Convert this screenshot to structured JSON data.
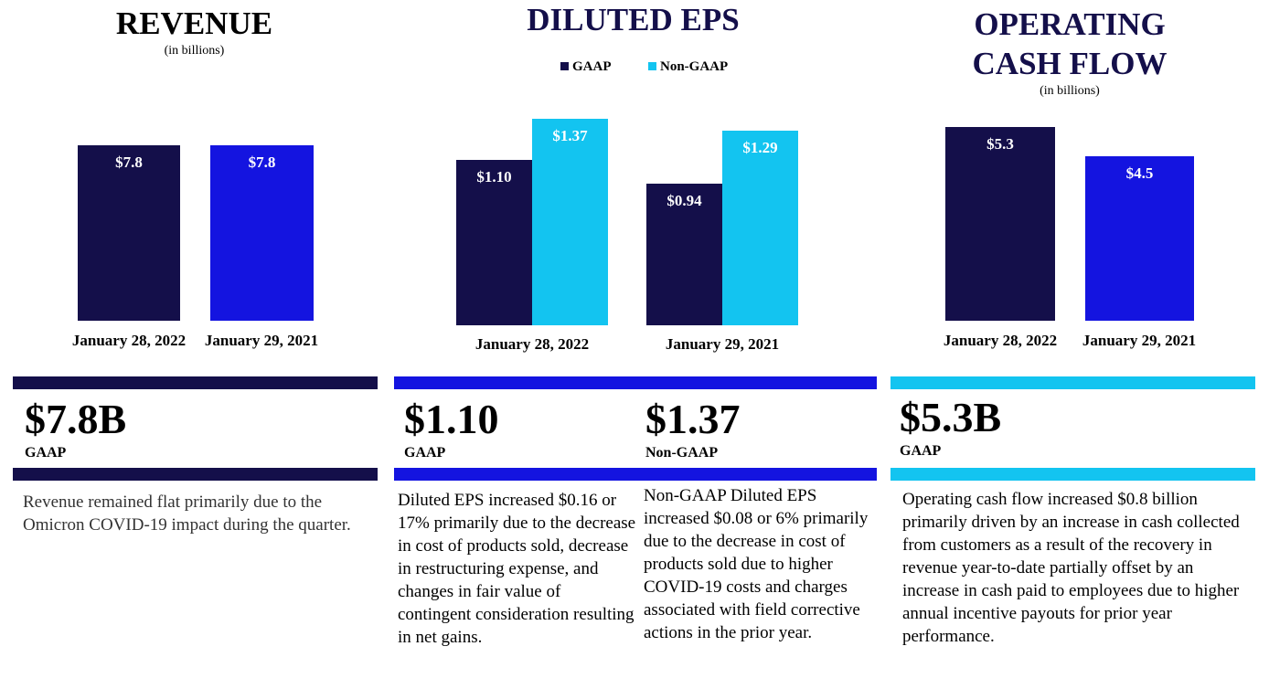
{
  "colors": {
    "navy": "#140f4a",
    "blue": "#1414e0",
    "cyan": "#13c4f0"
  },
  "chart_data": [
    {
      "type": "bar",
      "title": "REVENUE",
      "subtitle": "(in billions)",
      "categories": [
        "January 28, 2022",
        "January 29, 2021"
      ],
      "values": [
        7.8,
        7.8
      ],
      "value_labels": [
        "$7.8",
        "$7.8"
      ],
      "ylim": [
        0,
        8.6
      ]
    },
    {
      "type": "bar",
      "title": "DILUTED EPS",
      "categories": [
        "January 28, 2022",
        "January 29, 2021"
      ],
      "series": [
        {
          "name": "GAAP",
          "values": [
            1.1,
            0.94
          ],
          "value_labels": [
            "$1.10",
            "$0.94"
          ]
        },
        {
          "name": "Non-GAAP",
          "values": [
            1.37,
            1.29
          ],
          "value_labels": [
            "$1.37",
            "$1.29"
          ]
        }
      ],
      "ylim": [
        0,
        1.5
      ]
    },
    {
      "type": "bar",
      "title": "OPERATING CASH FLOW",
      "title_lines": [
        "OPERATING",
        "CASH FLOW"
      ],
      "subtitle": "(in billions)",
      "categories": [
        "January 28, 2022",
        "January 29, 2021"
      ],
      "values": [
        5.3,
        4.5
      ],
      "value_labels": [
        "$5.3",
        "$4.5"
      ],
      "ylim": [
        0,
        5.7
      ]
    }
  ],
  "summary": {
    "revenue": {
      "value": "$7.8B",
      "label": "GAAP",
      "text": "Revenue remained flat primarily due to the Omicron COVID-19 impact during the quarter."
    },
    "eps_gaap": {
      "value": "$1.10",
      "label": "GAAP",
      "text": "Diluted EPS increased $0.16 or 17% primarily due to the decrease in cost of products sold, decrease in restructuring expense, and changes in fair value of contingent consideration resulting in net gains."
    },
    "eps_nongaap": {
      "value": "$1.37",
      "label": "Non-GAAP",
      "text": "Non-GAAP Diluted EPS increased $0.08 or 6% primarily due to the decrease in cost of products sold due to higher COVID-19 costs and charges associated with field corrective actions in the prior year."
    },
    "cashflow": {
      "value": "$5.3B",
      "label": "GAAP",
      "text": "Operating cash flow increased $0.8 billion primarily driven by an increase in cash collected from customers as a result of the recovery in revenue year-to-date partially offset by an increase in cash paid to employees due to higher annual incentive payouts for prior year performance."
    }
  }
}
